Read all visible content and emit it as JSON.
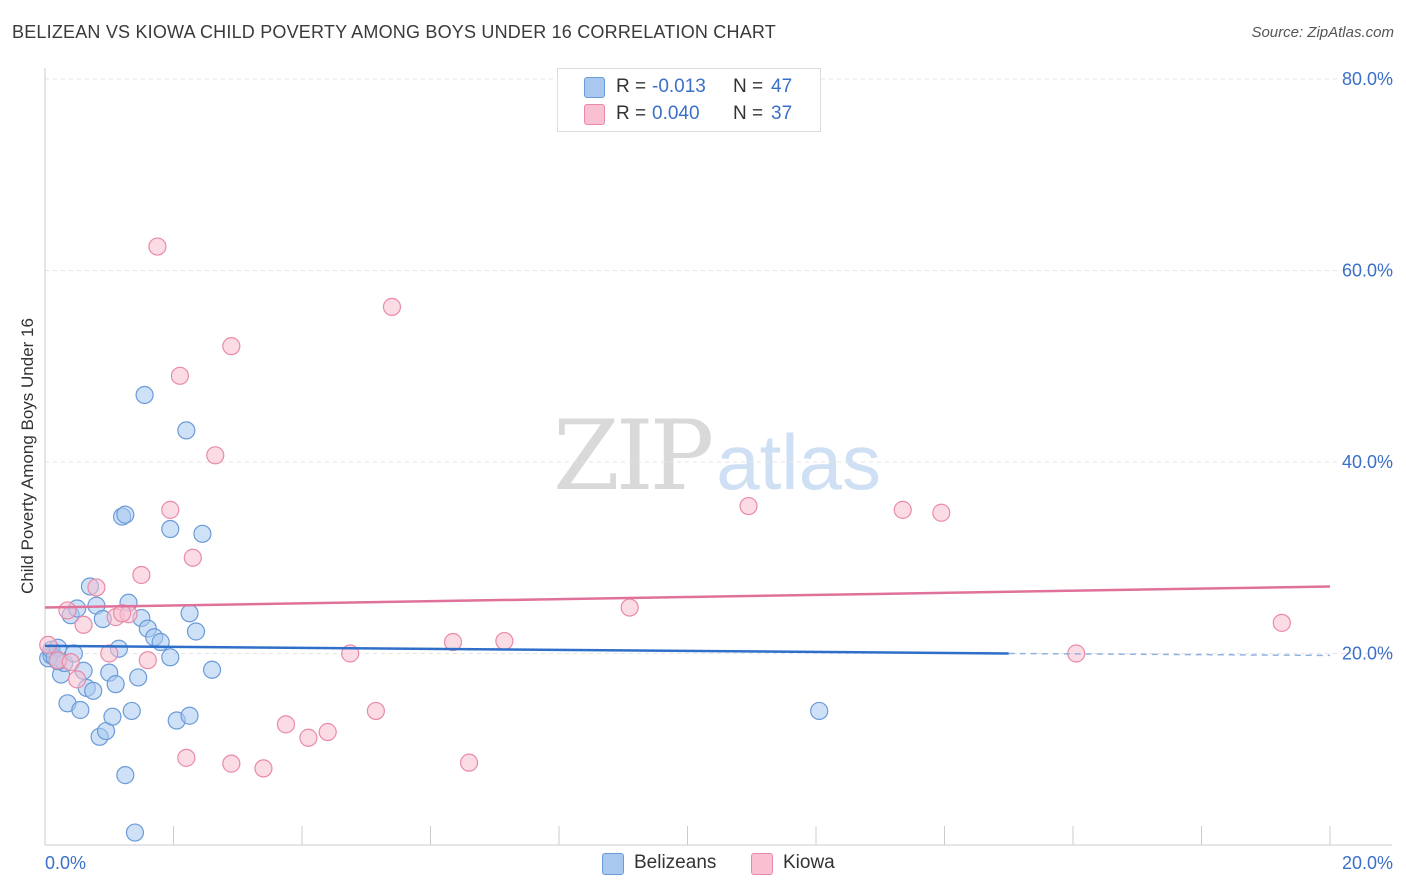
{
  "title": "BELIZEAN VS KIOWA CHILD POVERTY AMONG BOYS UNDER 16 CORRELATION CHART",
  "source": "Source: ZipAtlas.com",
  "watermark": {
    "zip": "ZIP",
    "atlas": "atlas"
  },
  "legend_top": [
    {
      "r_label": "R =",
      "r_value": "-0.013",
      "n_label": "N =",
      "n_value": "47",
      "color": "#a8c8f0",
      "edge": "#6b9bd8"
    },
    {
      "r_label": "R =",
      "r_value": "0.040",
      "n_label": "N =",
      "n_value": "37",
      "color": "#f8c0d0",
      "edge": "#e88aa8"
    }
  ],
  "legend_bottom": [
    {
      "label": "Belizeans",
      "color": "#a8c8f0",
      "edge": "#6b9bd8"
    },
    {
      "label": "Kiowa",
      "color": "#f8c0d0",
      "edge": "#e88aa8"
    }
  ],
  "chart_data": {
    "type": "scatter",
    "title": "BELIZEAN VS KIOWA CHILD POVERTY AMONG BOYS UNDER 16 CORRELATION CHART",
    "xlabel": "",
    "ylabel": "Child Poverty Among Boys Under 16",
    "xlim": [
      0,
      20
    ],
    "ylim": [
      0,
      80
    ],
    "x_tick_labels": [
      "0.0%",
      "20.0%"
    ],
    "y_ticks": [
      20,
      40,
      60,
      80
    ],
    "y_tick_labels": [
      "20.0%",
      "40.0%",
      "60.0%",
      "80.0%"
    ],
    "grid": true,
    "legend_position": "top-center",
    "series": [
      {
        "name": "Belizeans",
        "color": "#6b9bd8",
        "fill": "#a8c8f0",
        "trend": {
          "x0": 0,
          "y0": 20.8,
          "x1": 15.0,
          "y1": 20.0,
          "dash_to": 20,
          "dash_y": 19.8
        },
        "points": [
          [
            0.05,
            19.5
          ],
          [
            0.1,
            19.8
          ],
          [
            0.1,
            20.4
          ],
          [
            0.15,
            19.6
          ],
          [
            0.2,
            20.6
          ],
          [
            0.25,
            17.8
          ],
          [
            0.3,
            19.0
          ],
          [
            0.35,
            14.8
          ],
          [
            0.4,
            24.0
          ],
          [
            0.45,
            20.0
          ],
          [
            0.5,
            24.7
          ],
          [
            0.55,
            14.1
          ],
          [
            0.6,
            18.2
          ],
          [
            0.65,
            16.4
          ],
          [
            0.7,
            27.0
          ],
          [
            0.75,
            16.1
          ],
          [
            0.8,
            25.0
          ],
          [
            0.85,
            11.3
          ],
          [
            0.9,
            23.6
          ],
          [
            0.95,
            11.9
          ],
          [
            1.0,
            18.0
          ],
          [
            1.05,
            13.4
          ],
          [
            1.1,
            16.8
          ],
          [
            1.15,
            20.5
          ],
          [
            1.2,
            34.3
          ],
          [
            1.25,
            7.3
          ],
          [
            1.3,
            25.3
          ],
          [
            1.35,
            14.0
          ],
          [
            1.45,
            17.5
          ],
          [
            1.5,
            23.7
          ],
          [
            1.6,
            22.6
          ],
          [
            1.7,
            21.7
          ],
          [
            1.8,
            21.2
          ],
          [
            1.95,
            19.6
          ],
          [
            2.05,
            13.0
          ],
          [
            2.25,
            13.5
          ],
          [
            2.35,
            22.3
          ],
          [
            2.45,
            32.5
          ],
          [
            2.6,
            18.3
          ],
          [
            2.25,
            24.2
          ],
          [
            1.55,
            47.0
          ],
          [
            2.2,
            43.3
          ],
          [
            1.95,
            33.0
          ],
          [
            0.2,
            19.2
          ],
          [
            1.4,
            1.3
          ],
          [
            1.25,
            34.5
          ],
          [
            12.05,
            14.0
          ]
        ]
      },
      {
        "name": "Kiowa",
        "color": "#e88aa8",
        "fill": "#f8c0d0",
        "trend": {
          "x0": 0,
          "y0": 24.8,
          "x1": 20,
          "y1": 27.0
        },
        "points": [
          [
            0.05,
            20.9
          ],
          [
            0.2,
            19.3
          ],
          [
            0.4,
            19.1
          ],
          [
            0.5,
            17.3
          ],
          [
            0.6,
            23.0
          ],
          [
            0.8,
            26.9
          ],
          [
            1.0,
            20.0
          ],
          [
            1.1,
            23.8
          ],
          [
            1.3,
            24.1
          ],
          [
            1.5,
            28.2
          ],
          [
            1.6,
            19.3
          ],
          [
            1.75,
            62.5
          ],
          [
            1.95,
            35.0
          ],
          [
            2.1,
            49.0
          ],
          [
            2.3,
            30.0
          ],
          [
            2.2,
            9.1
          ],
          [
            2.65,
            40.7
          ],
          [
            2.9,
            52.1
          ],
          [
            2.9,
            8.5
          ],
          [
            3.4,
            8.0
          ],
          [
            3.75,
            12.6
          ],
          [
            4.1,
            11.2
          ],
          [
            4.4,
            11.8
          ],
          [
            4.75,
            20.0
          ],
          [
            5.15,
            14.0
          ],
          [
            5.4,
            56.2
          ],
          [
            6.35,
            21.2
          ],
          [
            6.6,
            8.6
          ],
          [
            7.15,
            21.3
          ],
          [
            9.1,
            24.8
          ],
          [
            10.95,
            35.4
          ],
          [
            13.35,
            35.0
          ],
          [
            13.95,
            34.7
          ],
          [
            16.05,
            20.0
          ],
          [
            19.25,
            23.2
          ],
          [
            1.2,
            24.2
          ],
          [
            0.35,
            24.5
          ]
        ]
      }
    ]
  }
}
